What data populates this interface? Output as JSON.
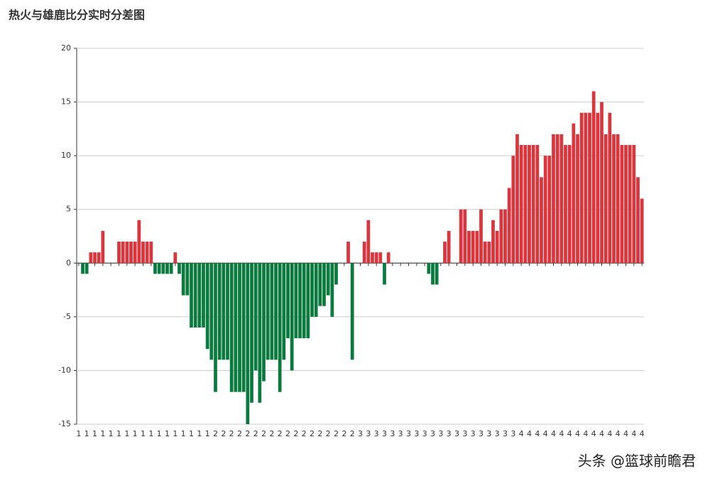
{
  "chart_data": {
    "type": "bar",
    "title": "热火与雄鹿比分实时分差图",
    "watermark": "头条 @篮球前瞻君",
    "positive_color": "#d9363e",
    "negative_color": "#0b7a3e",
    "ylim": [
      -15,
      20
    ],
    "yticks": [
      -15,
      -10,
      -5,
      0,
      5,
      10,
      15,
      20
    ],
    "grid": true,
    "categories": [
      "1",
      null,
      "1",
      null,
      "1",
      null,
      "1",
      null,
      "1",
      null,
      "1",
      null,
      "1",
      null,
      "1",
      null,
      "1",
      null,
      "1",
      null,
      "1",
      null,
      "1",
      null,
      "1",
      null,
      "1",
      null,
      "1",
      null,
      "1",
      null,
      "1",
      null,
      "2",
      null,
      "2",
      null,
      "2",
      null,
      "2",
      null,
      "2",
      null,
      "2",
      null,
      "2",
      null,
      "2",
      null,
      "2",
      null,
      "2",
      null,
      "2",
      null,
      "2",
      null,
      "2",
      null,
      "2",
      null,
      "2",
      null,
      "2",
      null,
      "2",
      null,
      "2",
      null,
      "3",
      null,
      "3",
      null,
      "3",
      null,
      "3",
      null,
      "3",
      null,
      "3",
      null,
      "3",
      null,
      "3",
      null,
      "3",
      null,
      "3",
      null,
      "3",
      null,
      "3",
      null,
      "3",
      null,
      "3",
      null,
      "3",
      null,
      "3",
      null,
      "3",
      null,
      "3",
      null,
      "3",
      null,
      "3",
      null,
      "4",
      null,
      "4",
      null,
      "4",
      null,
      "4",
      null,
      "4",
      null,
      "4",
      null,
      "4",
      null,
      "4",
      null,
      "4",
      null,
      "4",
      null,
      "4",
      null,
      "4",
      null,
      "4",
      null,
      "4",
      null,
      "4",
      null,
      "4"
    ],
    "values": [
      0,
      -1,
      -1,
      1,
      1,
      1,
      3,
      0,
      0,
      0,
      2,
      2,
      2,
      2,
      2,
      4,
      2,
      2,
      2,
      -1,
      -1,
      -1,
      -1,
      -1,
      1,
      -1,
      -3,
      -3,
      -6,
      -6,
      -6,
      -6,
      -8,
      -9,
      -12,
      -9,
      -9,
      -9,
      -12,
      -12,
      -12,
      -12,
      -15,
      -13,
      -10,
      -13,
      -11,
      -9,
      -9,
      -9,
      -12,
      -9,
      -7,
      -10,
      -7,
      -7,
      -7,
      -7,
      -5,
      -5,
      -4,
      -4,
      -3,
      -5,
      -2,
      0,
      0,
      2,
      -9,
      0,
      0,
      2,
      4,
      1,
      1,
      1,
      -2,
      1,
      0,
      0,
      0,
      0,
      0,
      0,
      0,
      0,
      0,
      -1,
      -2,
      -2,
      0,
      2,
      3,
      0,
      0,
      5,
      5,
      3,
      3,
      3,
      5,
      2,
      2,
      4,
      3,
      5,
      5,
      7,
      10,
      12,
      11,
      11,
      11,
      11,
      11,
      8,
      10,
      10,
      12,
      12,
      12,
      11,
      11,
      13,
      12,
      14,
      14,
      14,
      16,
      14,
      15,
      12,
      14,
      12,
      12,
      11,
      11,
      11,
      11,
      8,
      6
    ]
  }
}
